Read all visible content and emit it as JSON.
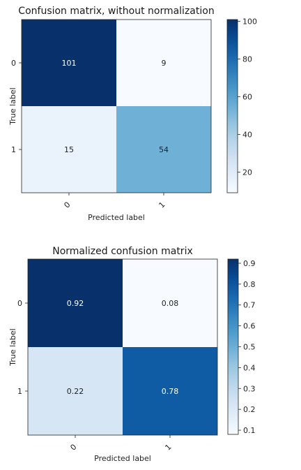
{
  "chart_data": [
    {
      "type": "heatmap",
      "title": "Confusion matrix, without normalization",
      "xlabel": "Predicted label",
      "ylabel": "True label",
      "x_categories": [
        "0",
        "1"
      ],
      "y_categories": [
        "0",
        "1"
      ],
      "values": [
        [
          101,
          9
        ],
        [
          15,
          54
        ]
      ],
      "labels": [
        [
          "101",
          "9"
        ],
        [
          "15",
          "54"
        ]
      ],
      "colormap": "Blues",
      "colorbar": {
        "range": [
          9,
          101
        ],
        "ticks": [
          20,
          40,
          60,
          80,
          100
        ],
        "tick_labels": [
          "20",
          "40",
          "60",
          "80",
          "100"
        ]
      }
    },
    {
      "type": "heatmap",
      "title": "Normalized confusion matrix",
      "xlabel": "Predicted label",
      "ylabel": "True label",
      "x_categories": [
        "0",
        "1"
      ],
      "y_categories": [
        "0",
        "1"
      ],
      "values": [
        [
          0.92,
          0.08
        ],
        [
          0.22,
          0.78
        ]
      ],
      "labels": [
        [
          "0.92",
          "0.08"
        ],
        [
          "0.22",
          "0.78"
        ]
      ],
      "colormap": "Blues",
      "colorbar": {
        "range": [
          0.08,
          0.92
        ],
        "ticks": [
          0.1,
          0.2,
          0.3,
          0.4,
          0.5,
          0.6,
          0.7,
          0.8,
          0.9
        ],
        "tick_labels": [
          "0.1",
          "0.2",
          "0.3",
          "0.4",
          "0.5",
          "0.6",
          "0.7",
          "0.8",
          "0.9"
        ]
      }
    }
  ]
}
